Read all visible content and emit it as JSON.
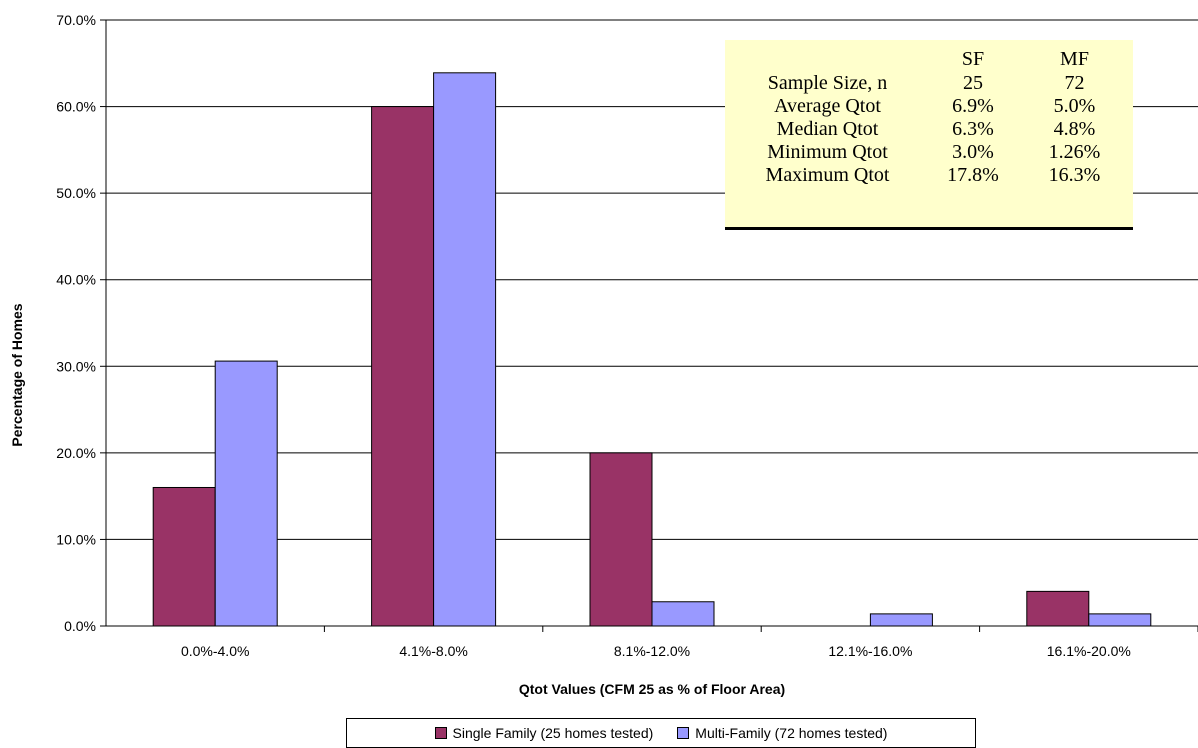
{
  "chart_data": {
    "type": "bar",
    "categories": [
      "0.0%-4.0%",
      "4.1%-8.0%",
      "8.1%-12.0%",
      "12.1%-16.0%",
      "16.1%-20.0%"
    ],
    "series": [
      {
        "name": "Single Family (25 homes tested)",
        "color": "#993366",
        "values": [
          16.0,
          60.0,
          20.0,
          0.0,
          4.0
        ]
      },
      {
        "name": "Multi-Family (72 homes tested)",
        "color": "#9999ff",
        "values": [
          30.6,
          63.9,
          2.8,
          1.4,
          1.4
        ]
      }
    ],
    "xlabel": "Qtot Values (CFM 25 as % of Floor Area)",
    "ylabel": "Percentage of Homes",
    "ylim": [
      0,
      70
    ],
    "yticks": [
      "0.0%",
      "10.0%",
      "20.0%",
      "30.0%",
      "40.0%",
      "50.0%",
      "60.0%",
      "70.0%"
    ],
    "grid": true,
    "legend_position": "bottom"
  },
  "stats_table": {
    "header": [
      "",
      "SF",
      "MF"
    ],
    "rows": [
      [
        "Sample Size, n",
        "25",
        "72"
      ],
      [
        "Average Qtot",
        "6.9%",
        "5.0%"
      ],
      [
        "Median Qtot",
        "6.3%",
        "4.8%"
      ],
      [
        "Minimum Qtot",
        "3.0%",
        "1.26%"
      ],
      [
        "Maximum Qtot",
        "17.8%",
        "16.3%"
      ]
    ],
    "background": "#ffffcc"
  }
}
